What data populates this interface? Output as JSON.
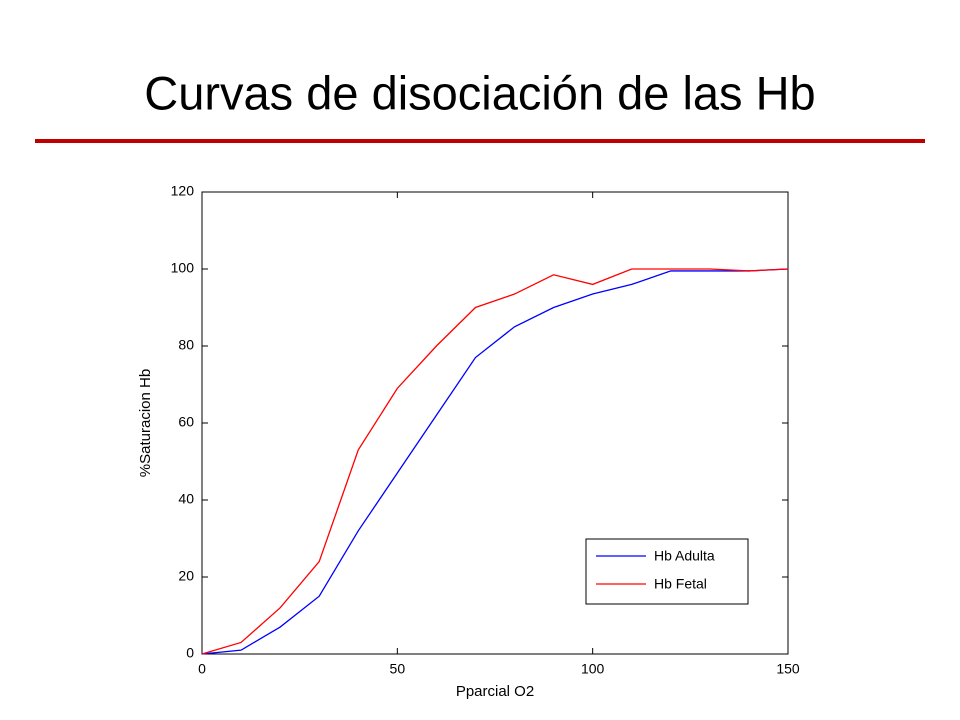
{
  "chart_data": {
    "type": "line",
    "title": "Curvas de disociación de las Hb",
    "x_label": "Pparcial O2",
    "y_label": "%Saturacion Hb",
    "x": [
      0,
      10,
      20,
      30,
      40,
      50,
      60,
      70,
      80,
      90,
      100,
      110,
      120,
      130,
      140,
      150
    ],
    "series": [
      {
        "name": "Hb Adulta",
        "color": "#0000ff",
        "values": [
          0,
          1,
          7,
          15,
          32,
          47,
          62,
          77,
          85,
          90,
          93.5,
          96,
          99.5,
          99.5,
          99.5,
          100
        ]
      },
      {
        "name": "Hb Fetal",
        "color": "#ff0000",
        "values": [
          0,
          3,
          12,
          24,
          53,
          69,
          80,
          90,
          93.5,
          98.5,
          96,
          100,
          100,
          100,
          99.5,
          100
        ]
      }
    ],
    "xlim": [
      0,
      150
    ],
    "xticks": [
      0,
      50,
      100,
      150
    ],
    "ylim": [
      0,
      120
    ],
    "yticks": [
      0,
      20,
      40,
      60,
      80,
      100,
      120
    ],
    "grid": false,
    "legend": "lower-right"
  }
}
